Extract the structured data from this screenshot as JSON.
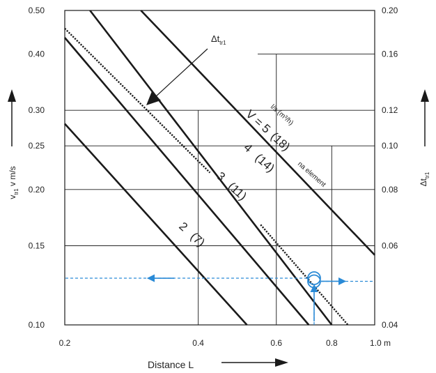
{
  "chart_data": {
    "type": "line",
    "title": "",
    "x_axis": {
      "label": "Distance L",
      "scale": "log",
      "range": [
        0.2,
        1.0
      ],
      "ticks": [
        {
          "value": 0.2,
          "label": "0.2"
        },
        {
          "value": 0.4,
          "label": "0.4"
        },
        {
          "value": 0.6,
          "label": "0.6"
        },
        {
          "value": 0.8,
          "label": "0.8"
        },
        {
          "value": 1.0,
          "label": "1.0 m"
        }
      ]
    },
    "y_axis_left": {
      "label": "v",
      "label_subscript": "tr1",
      "label_suffix": " v m/s",
      "scale": "log",
      "range": [
        0.1,
        0.5
      ],
      "ticks": [
        {
          "value": 0.1,
          "label": "0.10"
        },
        {
          "value": 0.15,
          "label": "0.15"
        },
        {
          "value": 0.2,
          "label": "0.20"
        },
        {
          "value": 0.25,
          "label": "0.25"
        },
        {
          "value": 0.3,
          "label": "0.30"
        },
        {
          "value": 0.4,
          "label": "0.40"
        },
        {
          "value": 0.5,
          "label": "0.50"
        }
      ]
    },
    "y_axis_right": {
      "label": "Δt",
      "label_subscript": "tr1",
      "scale": "log",
      "range": [
        0.04,
        0.2
      ],
      "ticks": [
        {
          "value": 0.04,
          "label": "0.04"
        },
        {
          "value": 0.06,
          "label": "0.06"
        },
        {
          "value": 0.08,
          "label": "0.08"
        },
        {
          "value": 0.1,
          "label": "0.10"
        },
        {
          "value": 0.12,
          "label": "0.12"
        },
        {
          "value": 0.16,
          "label": "0.16"
        },
        {
          "value": 0.2,
          "label": "0.20"
        }
      ]
    },
    "grid": true,
    "series": [
      {
        "name": "2 (7)",
        "style": "solid",
        "points": [
          [
            0.2,
            0.28
          ],
          [
            0.515,
            0.1
          ]
        ]
      },
      {
        "name": "3 (11)",
        "style": "solid",
        "points": [
          [
            0.2,
            0.435
          ],
          [
            0.71,
            0.1
          ]
        ]
      },
      {
        "name": "4 (14)",
        "style": "solid",
        "points": [
          [
            0.228,
            0.5
          ],
          [
            0.8,
            0.1
          ]
        ]
      },
      {
        "name": "V = 5 (18)",
        "style": "solid",
        "points": [
          [
            0.297,
            0.5
          ],
          [
            1.0,
            0.143
          ]
        ]
      },
      {
        "name": "Δt",
        "style": "dotted",
        "points": [
          [
            0.2,
            0.456
          ],
          [
            0.425,
            0.218
          ]
        ]
      },
      {
        "name": "Δt",
        "style": "dotted",
        "points": [
          [
            0.553,
            0.167
          ],
          [
            0.87,
            0.1
          ]
        ]
      }
    ],
    "annotations": {
      "delta_t_label": "Δt",
      "delta_t_sub": "tr1",
      "unit_label": "l/s  (m³/h)",
      "per_element": "na element",
      "curve_labels": [
        {
          "value": "V = 5",
          "flow": "(18)"
        },
        {
          "value": "4",
          "flow": "(14)"
        },
        {
          "value": "3",
          "flow": "(11)"
        },
        {
          "value": "2",
          "flow": "(7)"
        }
      ]
    },
    "reading_example": {
      "distance": 0.73,
      "v_circle": 0.127,
      "dt_circle": 0.05,
      "color": "#2a8ad6"
    },
    "colors": {
      "line": "#1a1a1a",
      "grid": "#1a1a1a",
      "arrow": "#2a8ad6"
    }
  }
}
